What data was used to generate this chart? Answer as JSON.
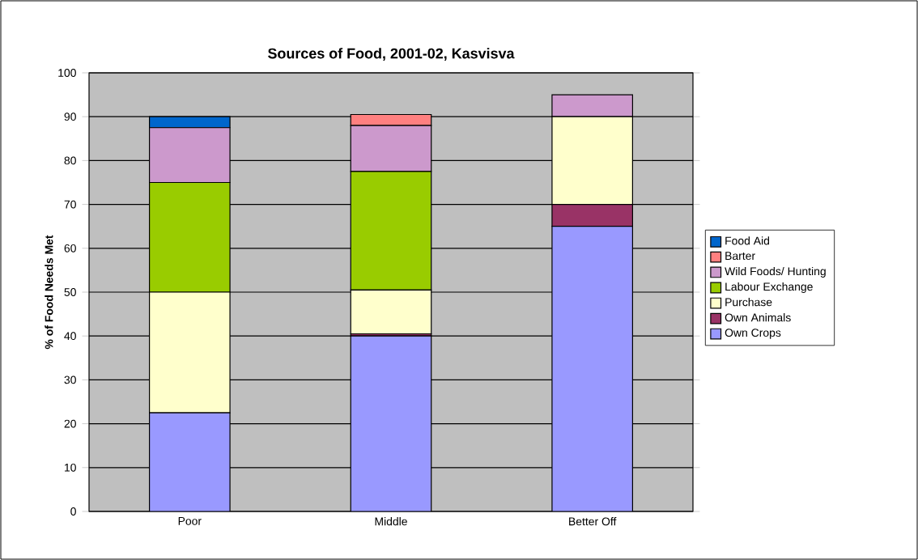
{
  "chart_data": {
    "type": "bar",
    "title": "Sources of Food, 2001-02, Kasvisva",
    "ylabel": "% of Food Needs Met",
    "categories": [
      "Poor",
      "Middle",
      "Better Off"
    ],
    "stacked": true,
    "series": [
      {
        "name": "Own Crops",
        "color": "#9999ff",
        "values": [
          22.5,
          40,
          65
        ]
      },
      {
        "name": "Own Animals",
        "color": "#993366",
        "values": [
          0,
          0.5,
          5
        ]
      },
      {
        "name": "Purchase",
        "color": "#ffffcc",
        "values": [
          27.5,
          10,
          20
        ]
      },
      {
        "name": "Labour Exchange",
        "color": "#99cc00",
        "values": [
          25,
          27,
          0
        ]
      },
      {
        "name": "Wild Foods/ Hunting",
        "color": "#cc99cc",
        "values": [
          12.5,
          10.5,
          5
        ]
      },
      {
        "name": "Barter",
        "color": "#ff8080",
        "values": [
          0,
          2.5,
          0
        ]
      },
      {
        "name": "Food Aid",
        "color": "#0066cc",
        "values": [
          2.5,
          0,
          0
        ]
      }
    ],
    "ylim": [
      0,
      100
    ],
    "yticks": [
      0,
      10,
      20,
      30,
      40,
      50,
      60,
      70,
      80,
      90,
      100
    ],
    "grid": "y",
    "legend": "right"
  }
}
